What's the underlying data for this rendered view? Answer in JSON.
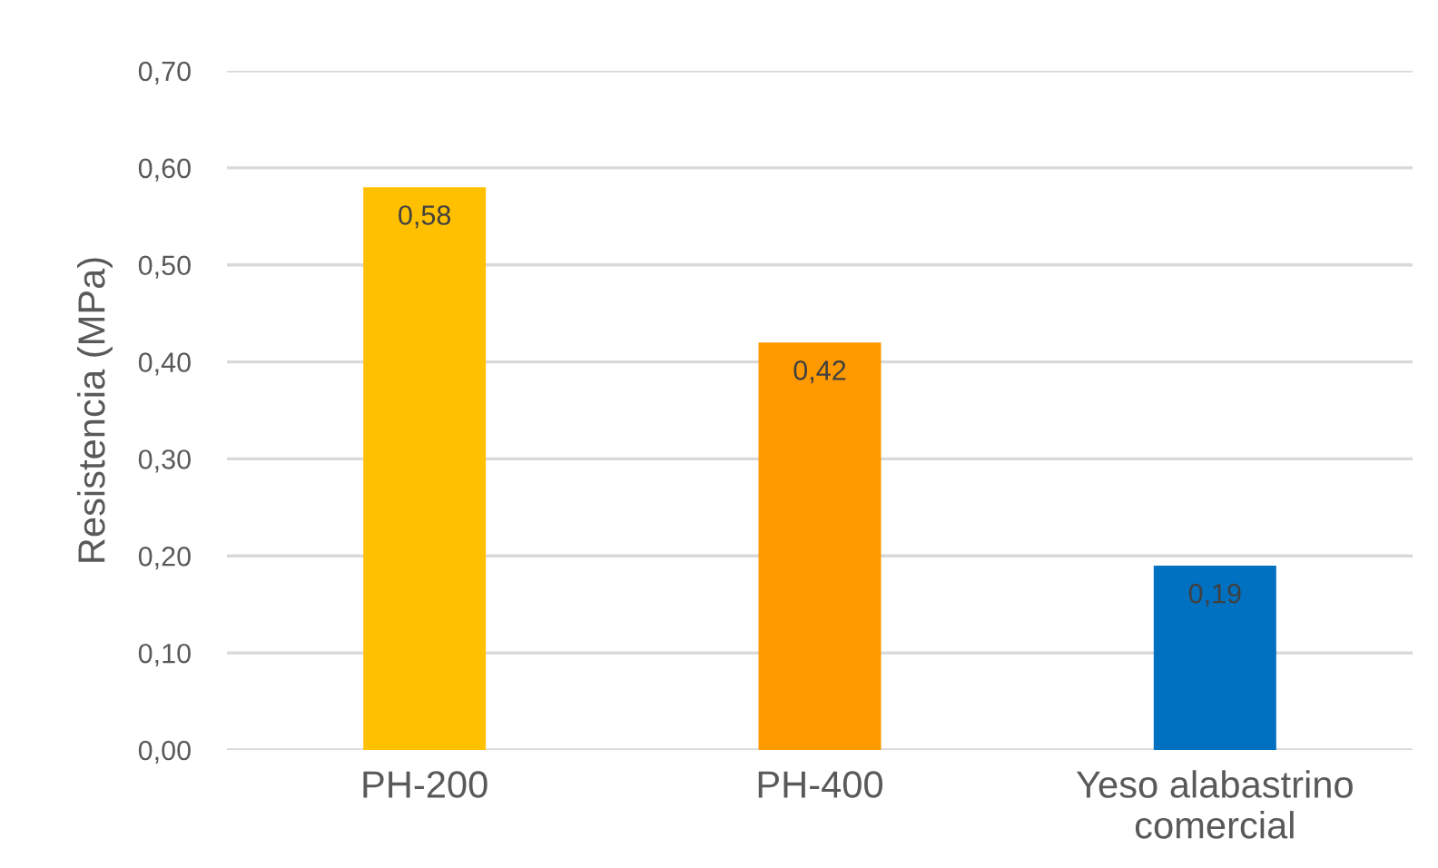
{
  "chart_data": {
    "type": "bar",
    "ylabel": "Resistencia (MPa)",
    "categories": [
      "PH-200",
      "PH-400",
      "Yeso alabastrino\ncomercial"
    ],
    "values": [
      0.58,
      0.42,
      0.19
    ],
    "colors": [
      "#ffc000",
      "#ff9900",
      "#0070c0"
    ],
    "value_labels": [
      "0,58",
      "0,42",
      "0,19"
    ],
    "ylim": [
      0,
      0.7
    ],
    "yticks": [
      {
        "value": 0,
        "label": "0,00"
      },
      {
        "value": 0.1,
        "label": "0,10"
      },
      {
        "value": 0.2,
        "label": "0,20"
      },
      {
        "value": 0.3,
        "label": "0,30"
      },
      {
        "value": 0.4,
        "label": "0,40"
      },
      {
        "value": 0.5,
        "label": "0,50"
      },
      {
        "value": 0.6,
        "label": "0,60"
      },
      {
        "value": 0.7,
        "label": "0,70"
      }
    ],
    "grid": "y",
    "legend": false
  }
}
